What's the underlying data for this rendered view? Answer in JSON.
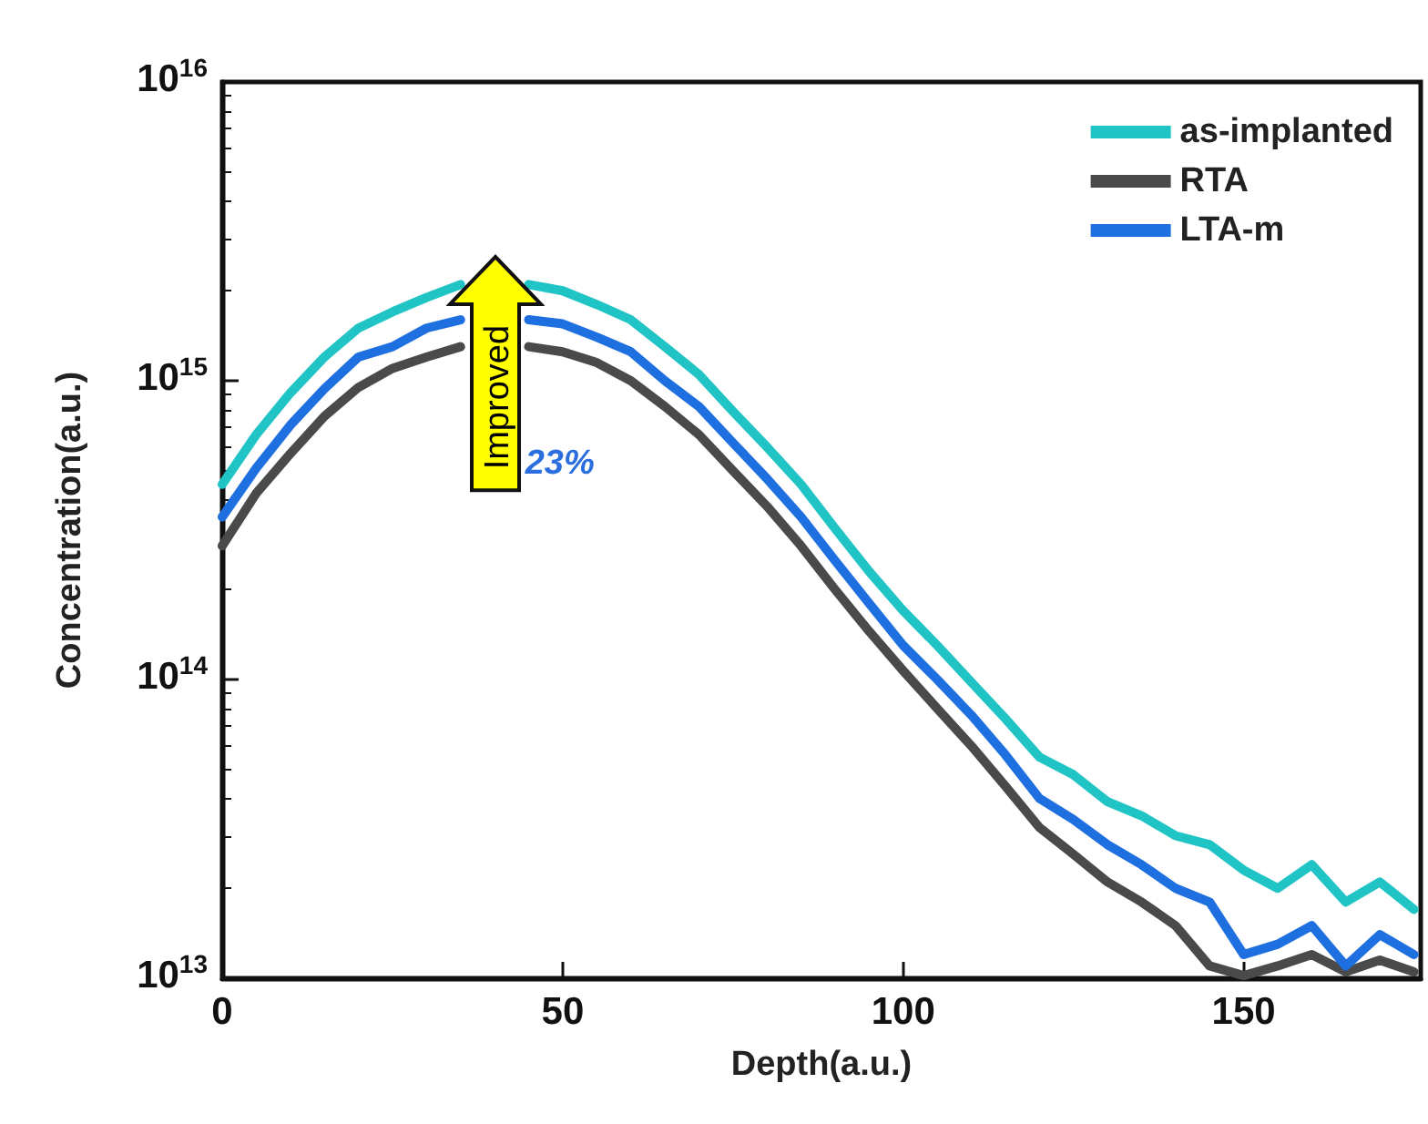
{
  "chart_data": {
    "type": "line",
    "xlabel": "Depth(a.u.)",
    "ylabel": "Concentration(a.u.)",
    "x": [
      0,
      5,
      10,
      15,
      20,
      25,
      30,
      35,
      40,
      45,
      50,
      55,
      60,
      65,
      70,
      75,
      80,
      85,
      90,
      95,
      100,
      105,
      110,
      115,
      120,
      125,
      130,
      135,
      140,
      145,
      150,
      155,
      160,
      165,
      170,
      175
    ],
    "series": [
      {
        "name": "as-implanted",
        "color": "#20c4c4",
        "values": [
          450000000000000.0,
          660000000000000.0,
          910000000000000.0,
          1200000000000000.0,
          1500000000000000.0,
          1700000000000000.0,
          1900000000000000.0,
          2100000000000000.0,
          null,
          2100000000000000.0,
          2000000000000000.0,
          1800000000000000.0,
          1600000000000000.0,
          1300000000000000.0,
          1050000000000000.0,
          790000000000000.0,
          600000000000000.0,
          450000000000000.0,
          320000000000000.0,
          230000000000000.0,
          170000000000000.0,
          130000000000000.0,
          98000000000000.0,
          74000000000000.0,
          55000000000000.0,
          48000000000000.0,
          39000000000000.0,
          35000000000000.0,
          30000000000000.0,
          28000000000000.0,
          23000000000000.0,
          20000000000000.0,
          24000000000000.0,
          18000000000000.0,
          21000000000000.0,
          17000000000000.0
        ]
      },
      {
        "name": "RTA",
        "color": "#4a4a4a",
        "values": [
          280000000000000.0,
          420000000000000.0,
          570000000000000.0,
          760000000000000.0,
          950000000000000.0,
          1100000000000000.0,
          1200000000000000.0,
          1300000000000000.0,
          null,
          1300000000000000.0,
          1250000000000000.0,
          1150000000000000.0,
          1000000000000000.0,
          820000000000000.0,
          660000000000000.0,
          500000000000000.0,
          380000000000000.0,
          280000000000000.0,
          200000000000000.0,
          145000000000000.0,
          107000000000000.0,
          80000000000000.0,
          60000000000000.0,
          44000000000000.0,
          32000000000000.0,
          26000000000000.0,
          21000000000000.0,
          18000000000000.0,
          15000000000000.0,
          11000000000000.0,
          10200000000000.0,
          11000000000000.0,
          12000000000000.0,
          10500000000000.0,
          11500000000000.0,
          10500000000000.0
        ]
      },
      {
        "name": "LTA-m",
        "color": "#1e6fe0",
        "values": [
          350000000000000.0,
          510000000000000.0,
          710000000000000.0,
          940000000000000.0,
          1200000000000000.0,
          1300000000000000.0,
          1500000000000000.0,
          1600000000000000.0,
          null,
          1600000000000000.0,
          1550000000000000.0,
          1400000000000000.0,
          1250000000000000.0,
          1000000000000000.0,
          820000000000000.0,
          620000000000000.0,
          470000000000000.0,
          350000000000000.0,
          250000000000000.0,
          180000000000000.0,
          130000000000000.0,
          100000000000000.0,
          76000000000000.0,
          56000000000000.0,
          40000000000000.0,
          34000000000000.0,
          28000000000000.0,
          24000000000000.0,
          20000000000000.0,
          18000000000000.0,
          12000000000000.0,
          13000000000000.0,
          15000000000000.0,
          11000000000000.0,
          14000000000000.0,
          12000000000000.0
        ]
      }
    ],
    "log": "y",
    "xlim": [
      0,
      176
    ],
    "xticks": [
      0,
      50,
      100,
      150
    ],
    "ylim": [
      10000000000000.0,
      1e+16
    ],
    "yticks": [
      {
        "value": 10000000000000.0,
        "label": "10$^{13}$"
      },
      {
        "value": 100000000000000.0,
        "label": "10$^{14}$"
      },
      {
        "value": 1000000000000000.0,
        "label": "10$^{15}$"
      },
      {
        "value": 1e+16,
        "label": "10$^{16}$"
      }
    ],
    "annotations": [
      "Improved",
      "23%"
    ],
    "legend": "top right",
    "grid": false,
    "marker": "none",
    "line_style": "solid"
  }
}
